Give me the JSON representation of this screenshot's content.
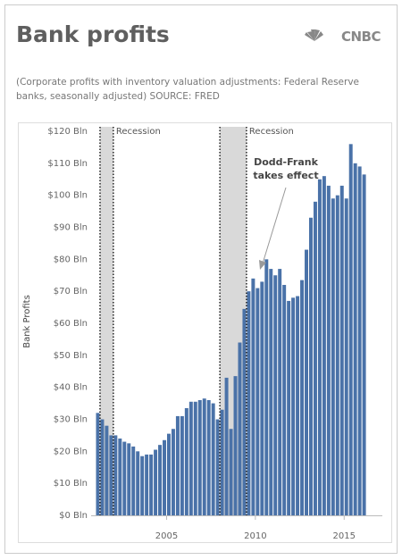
{
  "logo": "CNBC",
  "chart_data": {
    "type": "bar",
    "title": "Bank profits",
    "subtitle": "(Corporate profits with inventory valuation adjustments: Federal Reserve banks, seasonally adjusted) SOURCE: FRED",
    "y_label": "Bank Profits",
    "annotation": [
      "Dodd-Frank",
      "takes effect"
    ],
    "x": [
      2001,
      2001.25,
      2001.5,
      2001.75,
      2002,
      2002.25,
      2002.5,
      2002.75,
      2003,
      2003.25,
      2003.5,
      2003.75,
      2004,
      2004.25,
      2004.5,
      2004.75,
      2005,
      2005.25,
      2005.5,
      2005.75,
      2006,
      2006.25,
      2006.5,
      2006.75,
      2007,
      2007.25,
      2007.5,
      2007.75,
      2008,
      2008.25,
      2008.5,
      2008.75,
      2009,
      2009.25,
      2009.5,
      2009.75,
      2010,
      2010.25,
      2010.5,
      2010.75,
      2011,
      2011.25,
      2011.5,
      2011.75,
      2012,
      2012.25,
      2012.5,
      2012.75,
      2013,
      2013.25,
      2013.5,
      2013.75,
      2014,
      2014.25,
      2014.5,
      2014.75,
      2015,
      2015.25,
      2015.5,
      2015.75,
      2016
    ],
    "series": [
      {
        "name": "Bank Profits",
        "color": "#4a72a8",
        "values": [
          32,
          30,
          28,
          25,
          25,
          24,
          23,
          22.5,
          21.5,
          20,
          18.5,
          19,
          19,
          20.5,
          22,
          23.5,
          25.5,
          27,
          31,
          31,
          33.5,
          35.5,
          35.5,
          36,
          36.5,
          36,
          35,
          30,
          33,
          43,
          27,
          43.5,
          54,
          64.5,
          70,
          74,
          71,
          73,
          80,
          77,
          75,
          77,
          72,
          67,
          68,
          68.5,
          73.5,
          83,
          93,
          98,
          105,
          106,
          103,
          99,
          100,
          103,
          99,
          116,
          110,
          109,
          106.5
        ]
      }
    ],
    "recessions": [
      {
        "label": "Recession",
        "range": [
          2001.25,
          2002
        ]
      },
      {
        "label": "Recession",
        "range": [
          2008,
          2009.5
        ]
      }
    ],
    "xlim": [
      2000.9,
      2017
    ],
    "xticks": [
      2005,
      2010,
      2015
    ],
    "ylim": [
      0,
      120
    ],
    "yticks": [
      {
        "value": 0,
        "label": "$0 Bln"
      },
      {
        "value": 10,
        "label": "$10 Bln"
      },
      {
        "value": 20,
        "label": "$20 Bln"
      },
      {
        "value": 30,
        "label": "$30 Bln"
      },
      {
        "value": 40,
        "label": "$40 Bln"
      },
      {
        "value": 50,
        "label": "$50 Bln"
      },
      {
        "value": 60,
        "label": "$60 Bln"
      },
      {
        "value": 70,
        "label": "$70 Bln"
      },
      {
        "value": 80,
        "label": "$80 Bln"
      },
      {
        "value": 90,
        "label": "$90 Bln"
      },
      {
        "value": 100,
        "label": "$100 Bln"
      },
      {
        "value": 110,
        "label": "$110 Bln"
      },
      {
        "value": 120,
        "label": "$120 Bln"
      }
    ],
    "grid": false
  }
}
